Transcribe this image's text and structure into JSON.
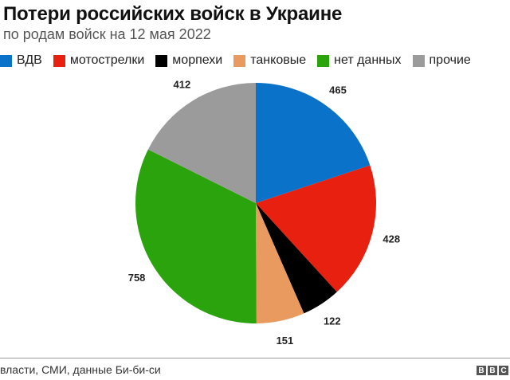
{
  "header": {
    "title": "Потери российских войск в Украине",
    "subtitle": "по родам войск на 12 мая 2022"
  },
  "legend": [
    {
      "label": "ВДВ",
      "color": "#0a72c8"
    },
    {
      "label": "мотострелки",
      "color": "#e8200f"
    },
    {
      "label": "морпехи",
      "color": "#000000"
    },
    {
      "label": "танковые",
      "color": "#e99a5e"
    },
    {
      "label": "нет данных",
      "color": "#2aa30d"
    },
    {
      "label": "прочие",
      "color": "#9b9b9b"
    }
  ],
  "footer": {
    "source": "власти, СМИ, данные Би-би-си",
    "logo": [
      "B",
      "B",
      "C"
    ]
  },
  "chart_data": {
    "type": "pie",
    "title": "Потери российских войск в Украине",
    "subtitle": "по родам войск на 12 мая 2022",
    "categories": [
      "ВДВ",
      "мотострелки",
      "морпехи",
      "танковые",
      "нет данных",
      "прочие"
    ],
    "values": [
      465,
      428,
      122,
      151,
      758,
      412
    ],
    "colors": [
      "#0a72c8",
      "#e8200f",
      "#000000",
      "#e99a5e",
      "#2aa30d",
      "#9b9b9b"
    ],
    "start_angle": "12 o'clock, clockwise",
    "legend_position": "top",
    "data_labels": true
  }
}
